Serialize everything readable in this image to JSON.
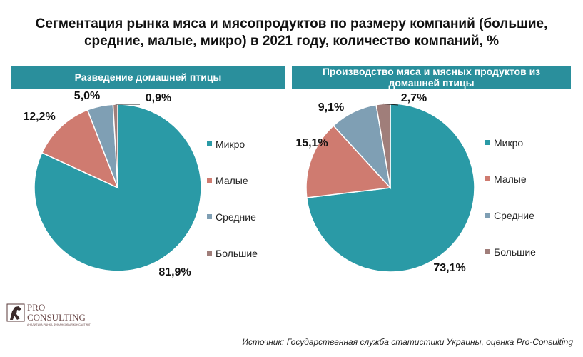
{
  "title_line1": "Сегментация рынка мяса и мясопродуктов по размеру компаний (большие,",
  "title_line2": "средние, малые, микро) в 2021 году, количество компаний, %",
  "colors": {
    "micro": "#2a9aa6",
    "small": "#cf7b70",
    "medium": "#7f9fb4",
    "large": "#a07e7a",
    "band": "#2a8f9c"
  },
  "chart_data": [
    {
      "type": "pie",
      "title": "Разведение домашней птицы",
      "categories": [
        "Микро",
        "Малые",
        "Средние",
        "Большие"
      ],
      "values": [
        81.9,
        12.2,
        5.0,
        0.9
      ],
      "data_labels": [
        "81,9%",
        "12,2%",
        "5,0%",
        "0,9%"
      ],
      "legend": "right"
    },
    {
      "type": "pie",
      "title": "Производство мяса и мясных продуктов из домашней птицы",
      "categories": [
        "Микро",
        "Малые",
        "Средние",
        "Большие"
      ],
      "values": [
        73.1,
        15.1,
        9.1,
        2.7
      ],
      "data_labels": [
        "73,1%",
        "15,1%",
        "9,1%",
        "2,7%"
      ],
      "legend": "right"
    }
  ],
  "logo": {
    "line1": "PRO",
    "line2": "CONSULTING",
    "tagline": "АНАЛИТИКА РЫНКА. ФИНАНСОВЫЙ КОНСАЛТИНГ"
  },
  "source": "Источник: Государственная служба статистики Украины, оценка Pro-Consulting"
}
